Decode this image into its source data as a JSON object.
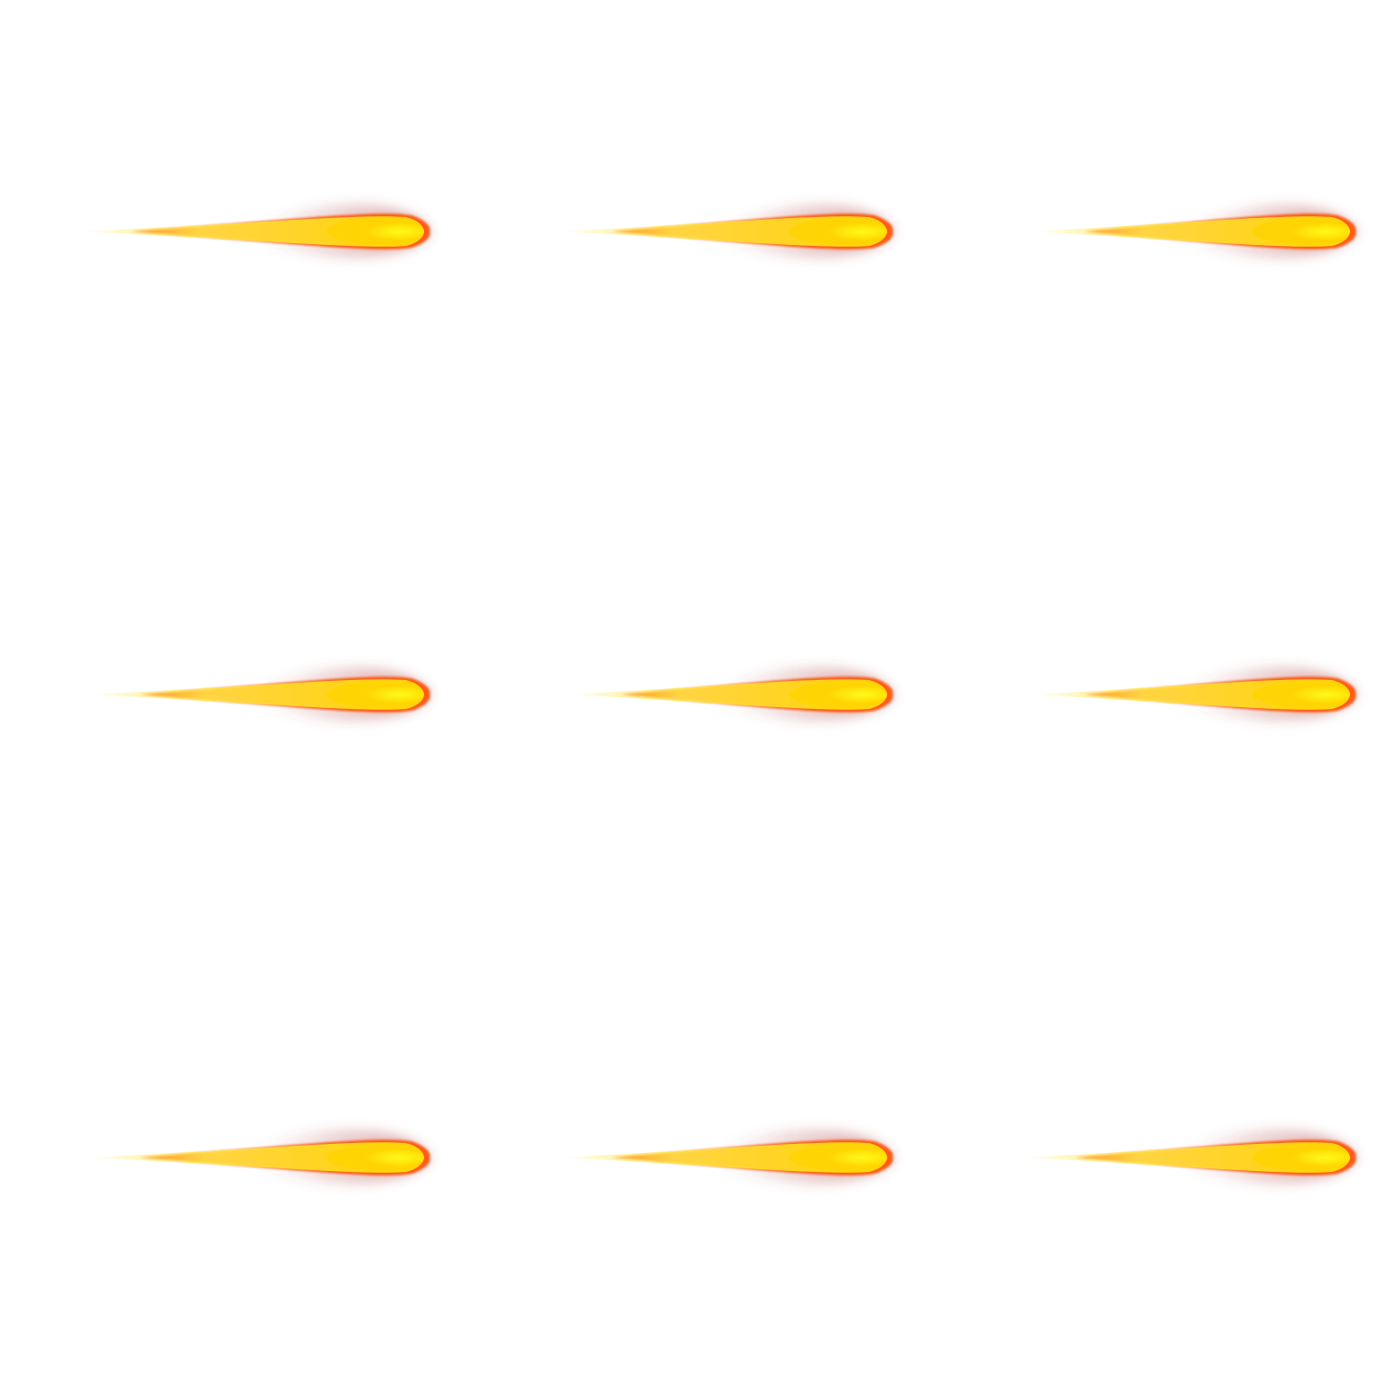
{
  "sprite_sheet": {
    "background": "#ffffff",
    "columns": 3,
    "rows": 3,
    "frame_count": 9,
    "sprite": "fireball-projectile",
    "direction": "right",
    "colors": {
      "core": "#ffff1a",
      "body": "#ffd400",
      "rim": "#ff5a14",
      "tail": "#ffe94a",
      "smoke": "#b04848"
    },
    "frames": [
      {
        "index": 1,
        "row": 1,
        "col": 1
      },
      {
        "index": 2,
        "row": 1,
        "col": 2
      },
      {
        "index": 3,
        "row": 1,
        "col": 3
      },
      {
        "index": 4,
        "row": 2,
        "col": 1
      },
      {
        "index": 5,
        "row": 2,
        "col": 2
      },
      {
        "index": 6,
        "row": 2,
        "col": 3
      },
      {
        "index": 7,
        "row": 3,
        "col": 1
      },
      {
        "index": 8,
        "row": 3,
        "col": 2
      },
      {
        "index": 9,
        "row": 3,
        "col": 3
      }
    ]
  }
}
